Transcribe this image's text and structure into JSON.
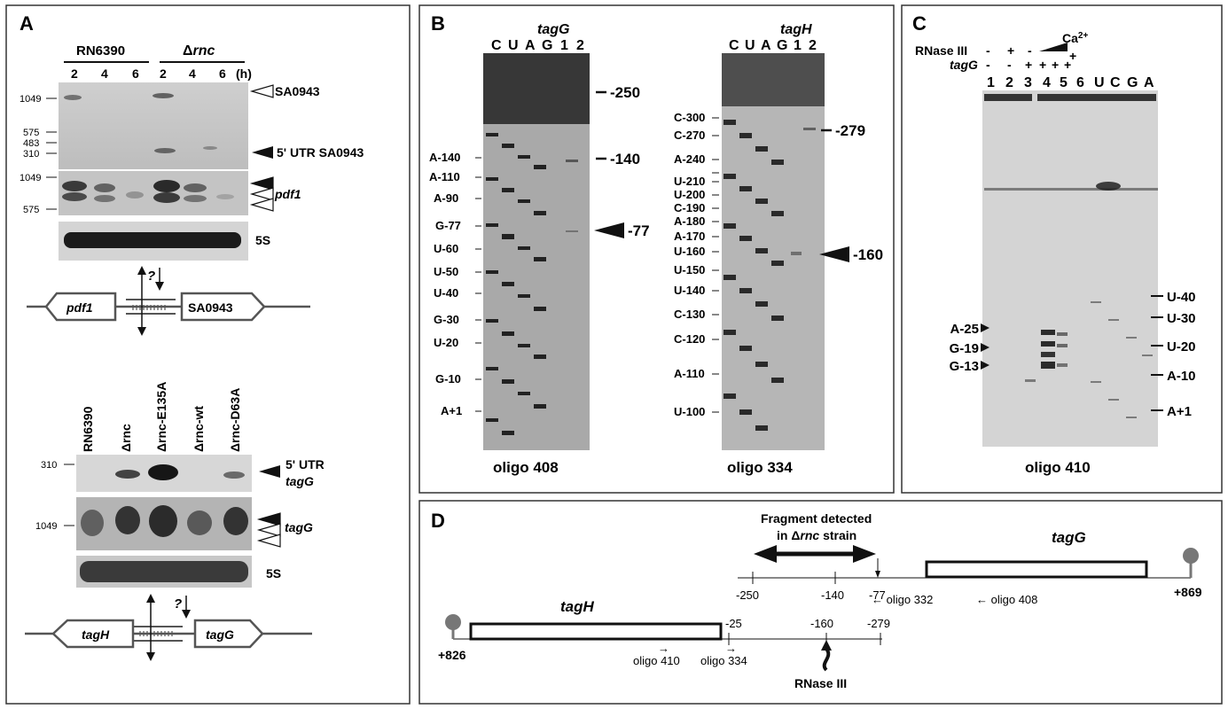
{
  "panels": {
    "A": {
      "letter": "A",
      "strain1": "RN6390",
      "strain2_prefix": "Δ",
      "strain2_gene": "rnc",
      "timepoints": [
        "2",
        "4",
        "6",
        "2",
        "4",
        "6"
      ],
      "time_unit": "(h)",
      "marker_top": [
        "1049",
        "575",
        "483",
        "310"
      ],
      "marker_mid": [
        "1049",
        "575"
      ],
      "label_sa0943": "SA0943",
      "label_5utr_sa0943": "5' UTR SA0943",
      "label_pdf1": "pdf1",
      "label_5s": "5S",
      "map1_gene_left": "pdf1",
      "map1_gene_right": "SA0943",
      "question_mark": "?",
      "lanes_bottom": [
        "RN6390",
        "Δrnc",
        "Δrnc-E135A",
        "Δrnc-wt",
        "Δrnc-D63A"
      ],
      "marker_bottom1": "310",
      "marker_bottom2": "1049",
      "label_5utr": "5' UTR",
      "label_tagG": "tagG",
      "label_5s_b": "5S",
      "map2_gene_left": "tagH",
      "map2_gene_right": "tagG"
    },
    "B": {
      "letter": "B",
      "gel1_title": "tagG",
      "gel1_lanes": [
        "C",
        "U",
        "A",
        "G",
        "1",
        "2"
      ],
      "gel1_ladder": [
        "A-140",
        "A-110",
        "A-90",
        "G-77",
        "U-60",
        "U-50",
        "U-40",
        "G-30",
        "U-20",
        "G-10",
        "A+1"
      ],
      "gel1_marks": [
        "-250",
        "-140",
        "-77"
      ],
      "gel1_oligo": "oligo 408",
      "gel2_title": "tagH",
      "gel2_lanes": [
        "C",
        "U",
        "A",
        "G",
        "1",
        "2"
      ],
      "gel2_ladder": [
        "C-300",
        "C-270",
        "A-240",
        "U-210",
        "U-200",
        "C-190",
        "A-180",
        "A-170",
        "U-160",
        "U-150",
        "U-140",
        "C-130",
        "C-120",
        "A-110",
        "U-100"
      ],
      "gel2_marks": [
        "-279",
        "-160"
      ],
      "gel2_oligo": "oligo 334"
    },
    "C": {
      "letter": "C",
      "row_rnase": "RNase III",
      "row_rnase_vals": [
        "-",
        "+",
        "-",
        "+"
      ],
      "ca_label": "Ca",
      "ca_sup": "2+",
      "row_tagG": "tagG",
      "row_tagG_vals": [
        "-",
        "-",
        "+",
        "+",
        "+",
        "+"
      ],
      "lanes": [
        "1",
        "2",
        "3",
        "4",
        "5",
        "6",
        "U",
        "C",
        "G",
        "A"
      ],
      "left_marks": [
        "A-25",
        "G-19",
        "G-13"
      ],
      "right_marks": [
        "U-40",
        "U-30",
        "U-20",
        "A-10",
        "A+1"
      ],
      "oligo": "oligo 410"
    },
    "D": {
      "letter": "D",
      "fragment_line1": "Fragment detected",
      "fragment_line2_pre": "in Δ",
      "fragment_line2_gene": "rnc",
      "fragment_line2_post": " strain",
      "gene_top": "tagG",
      "gene_bottom": "tagH",
      "top_ticks": [
        "-250",
        "-140",
        "-77"
      ],
      "top_end": "+869",
      "oligo_332": "oligo 332",
      "oligo_408": "oligo 408",
      "bottom_ticks": [
        "-25",
        "-160",
        "-279"
      ],
      "bottom_end": "+826",
      "oligo_410": "oligo 410",
      "oligo_334": "oligo 334",
      "rnase": "RNase III"
    }
  },
  "colors": {
    "gel_bg": "#b8b8b8",
    "band": "#1a1a1a",
    "frame": "#333333"
  }
}
